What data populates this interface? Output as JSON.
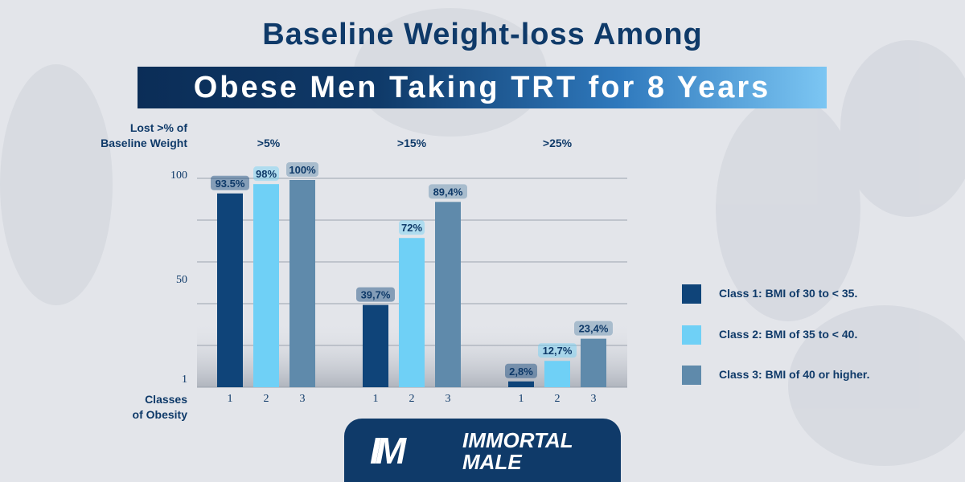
{
  "title_line1": "Baseline Weight-loss Among",
  "title_line2": "Obese Men Taking TRT for 8 Years",
  "y_axis_title_line1": "Lost >% of",
  "y_axis_title_line2": "Baseline Weight",
  "x_axis_title_line1": "Classes",
  "x_axis_title_line2": "of Obesity",
  "logo": {
    "mark": "IM",
    "line1": "IMMORTAL",
    "line2": "MALE"
  },
  "colors": {
    "class1": "#0f4479",
    "class2": "#6fd0f6",
    "class3": "#5f8aab",
    "text": "#0f3a69"
  },
  "legend": [
    {
      "label": "Class 1: BMI of 30 to < 35.",
      "color": "#0f4479"
    },
    {
      "label": "Class 2: BMI of 35 to < 40.",
      "color": "#6fd0f6"
    },
    {
      "label": "Class 3: BMI of 40 or higher.",
      "color": "#5f8aab"
    }
  ],
  "chart_data": {
    "type": "bar",
    "y_ticks": [
      "100",
      "50",
      "1"
    ],
    "ylim": [
      0,
      100
    ],
    "grid": true,
    "legend_position": "right",
    "groups": [
      {
        "label": ">5%",
        "classes": [
          "1",
          "2",
          "3"
        ],
        "values": [
          93.5,
          98,
          100
        ],
        "data_labels": [
          "93.5%",
          "98%",
          "100%"
        ]
      },
      {
        "label": ">15%",
        "classes": [
          "1",
          "2",
          "3"
        ],
        "values": [
          39.7,
          72,
          89.4
        ],
        "data_labels": [
          "39,7%",
          "72%",
          "89,4%"
        ]
      },
      {
        "label": ">25%",
        "classes": [
          "1",
          "2",
          "3"
        ],
        "values": [
          2.8,
          12.7,
          23.4
        ],
        "data_labels": [
          "2,8%",
          "12,7%",
          "23,4%"
        ]
      }
    ]
  }
}
